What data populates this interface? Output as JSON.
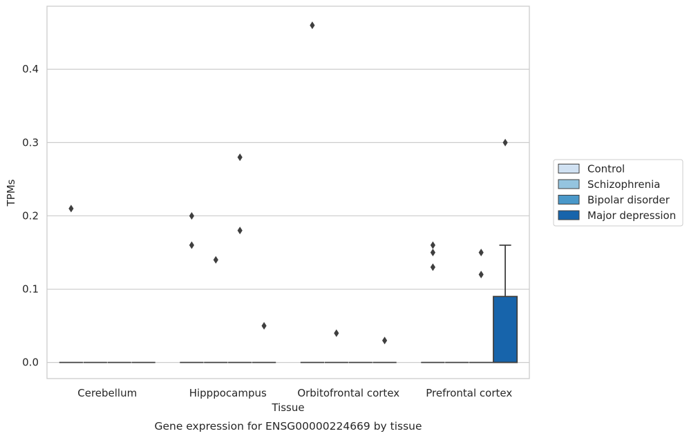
{
  "chart_data": {
    "type": "box",
    "xlabel": "Tissue",
    "ylabel": "TPMs",
    "caption": "Gene expression for ENSG00000224669 by tissue",
    "categories": [
      "Cerebellum",
      "Hipppocampus",
      "Orbitofrontal cortex",
      "Prefrontal cortex"
    ],
    "ylim": [
      -0.022,
      0.486
    ],
    "yticks": [
      {
        "value": 0.0,
        "label": "0.0"
      },
      {
        "value": 0.1,
        "label": "0.1"
      },
      {
        "value": 0.2,
        "label": "0.2"
      },
      {
        "value": 0.3,
        "label": "0.3"
      },
      {
        "value": 0.4,
        "label": "0.4"
      }
    ],
    "grid": "horizontal",
    "legend_position": "right",
    "series": [
      {
        "name": "Control",
        "color": "#d0e1f2",
        "boxes": [
          {
            "q1": 0,
            "median": 0,
            "q3": 0,
            "whisker_low": 0,
            "whisker_high": 0,
            "outliers": [
              0.21
            ]
          },
          {
            "q1": 0,
            "median": 0,
            "q3": 0,
            "whisker_low": 0,
            "whisker_high": 0,
            "outliers": [
              0.2,
              0.16
            ]
          },
          {
            "q1": 0,
            "median": 0,
            "q3": 0,
            "whisker_low": 0,
            "whisker_high": 0,
            "outliers": [
              0.46
            ]
          },
          {
            "q1": 0,
            "median": 0,
            "q3": 0,
            "whisker_low": 0,
            "whisker_high": 0,
            "outliers": [
              0.16,
              0.15,
              0.13
            ]
          }
        ]
      },
      {
        "name": "Schizophrenia",
        "color": "#94c4df",
        "boxes": [
          {
            "q1": 0,
            "median": 0,
            "q3": 0,
            "whisker_low": 0,
            "whisker_high": 0,
            "outliers": []
          },
          {
            "q1": 0,
            "median": 0,
            "q3": 0,
            "whisker_low": 0,
            "whisker_high": 0,
            "outliers": [
              0.14
            ]
          },
          {
            "q1": 0,
            "median": 0,
            "q3": 0,
            "whisker_low": 0,
            "whisker_high": 0,
            "outliers": [
              0.04
            ]
          },
          {
            "q1": 0,
            "median": 0,
            "q3": 0,
            "whisker_low": 0,
            "whisker_high": 0,
            "outliers": []
          }
        ]
      },
      {
        "name": "Bipolar disorder",
        "color": "#4a98c9",
        "boxes": [
          {
            "q1": 0,
            "median": 0,
            "q3": 0,
            "whisker_low": 0,
            "whisker_high": 0,
            "outliers": []
          },
          {
            "q1": 0,
            "median": 0,
            "q3": 0,
            "whisker_low": 0,
            "whisker_high": 0,
            "outliers": [
              0.28,
              0.18
            ]
          },
          {
            "q1": 0,
            "median": 0,
            "q3": 0,
            "whisker_low": 0,
            "whisker_high": 0,
            "outliers": []
          },
          {
            "q1": 0,
            "median": 0,
            "q3": 0,
            "whisker_low": 0,
            "whisker_high": 0,
            "outliers": [
              0.15,
              0.12
            ]
          }
        ]
      },
      {
        "name": "Major depression",
        "color": "#1764ab",
        "boxes": [
          {
            "q1": 0,
            "median": 0,
            "q3": 0,
            "whisker_low": 0,
            "whisker_high": 0,
            "outliers": []
          },
          {
            "q1": 0,
            "median": 0,
            "q3": 0,
            "whisker_low": 0,
            "whisker_high": 0,
            "outliers": [
              0.05
            ]
          },
          {
            "q1": 0,
            "median": 0,
            "q3": 0,
            "whisker_low": 0,
            "whisker_high": 0,
            "outliers": [
              0.03
            ]
          },
          {
            "q1": 0,
            "median": 0,
            "q3": 0.09,
            "whisker_low": 0,
            "whisker_high": 0.16,
            "outliers": [
              0.3
            ]
          }
        ]
      }
    ]
  }
}
